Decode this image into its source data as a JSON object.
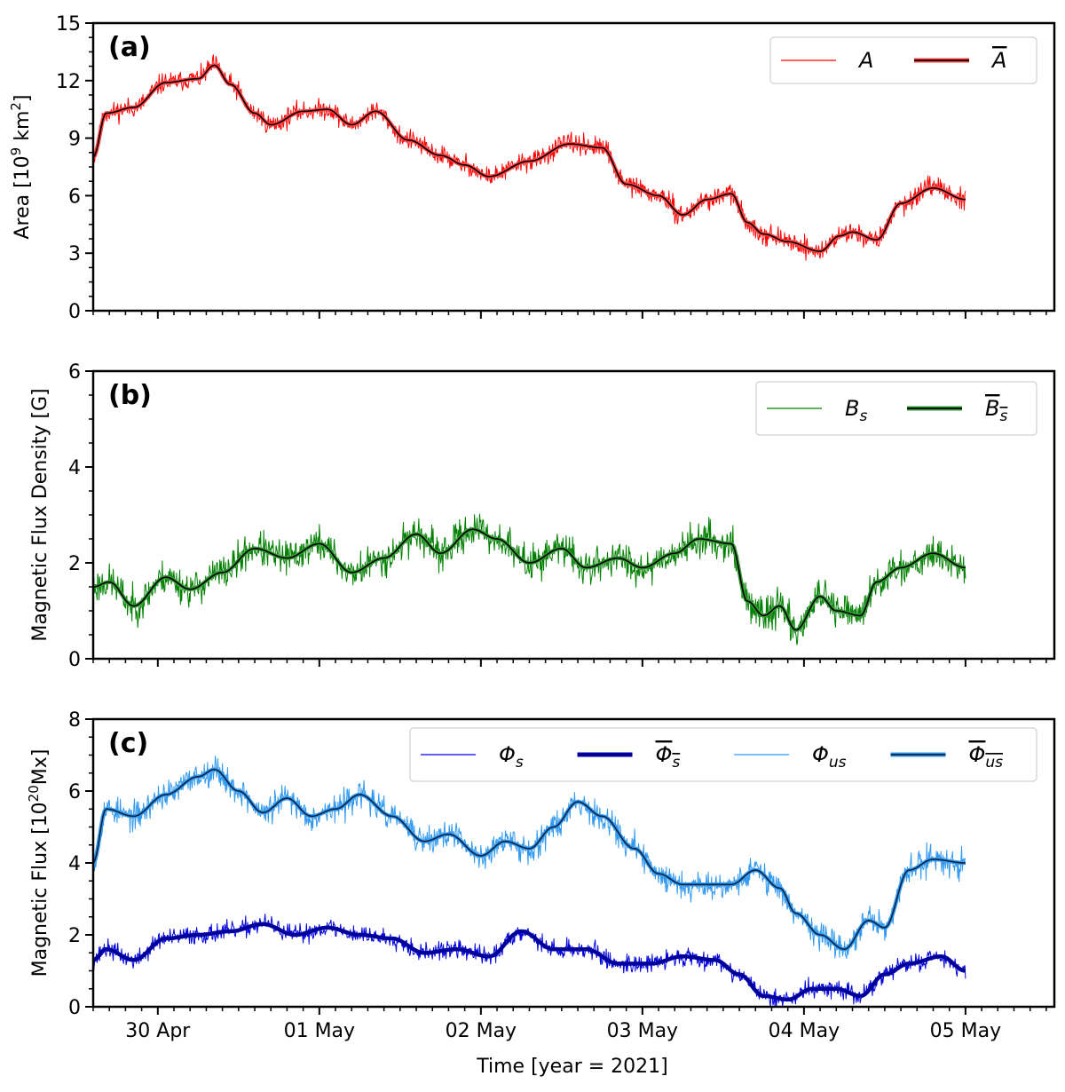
{
  "figure": {
    "xlabel": "Time [year = 2021]",
    "x_ticks": [
      "30 Apr",
      "01 May",
      "02 May",
      "03 May",
      "04 May",
      "05 May"
    ],
    "x_tick_values": [
      0.4,
      1.4,
      2.4,
      3.4,
      4.4,
      5.4
    ],
    "xlim": [
      0,
      5.95
    ]
  },
  "chart_data": [
    {
      "type": "line",
      "panel": "(a)",
      "ylabel": "Area [10",
      "ylabel_sup": "9",
      "ylabel_unit": " km",
      "ylabel_sup2": "2",
      "ylabel_end": "]",
      "ylim": [
        0,
        15
      ],
      "yticks": [
        0,
        3,
        6,
        9,
        12,
        15
      ],
      "series": [
        {
          "name": "A",
          "color": "#ff0000",
          "noisy": true,
          "noise": 0.4,
          "seed": 11,
          "x": [
            0.0,
            0.08,
            0.25,
            0.45,
            0.65,
            0.75,
            0.85,
            1.0,
            1.1,
            1.3,
            1.45,
            1.6,
            1.75,
            1.95,
            2.15,
            2.3,
            2.45,
            2.7,
            2.95,
            3.15,
            3.3,
            3.5,
            3.65,
            3.8,
            3.95,
            4.05,
            4.15,
            4.3,
            4.5,
            4.62,
            4.7,
            4.85,
            5.0,
            5.2,
            5.4
          ],
          "values": [
            8.0,
            10.3,
            10.6,
            11.9,
            12.1,
            12.8,
            11.8,
            10.3,
            9.7,
            10.4,
            10.5,
            9.7,
            10.4,
            8.9,
            8.1,
            7.6,
            7.0,
            7.8,
            8.7,
            8.5,
            6.6,
            6.0,
            5.0,
            5.8,
            6.1,
            4.6,
            4.0,
            3.6,
            3.1,
            3.9,
            4.1,
            3.7,
            5.6,
            6.4,
            5.8
          ]
        },
        {
          "name": "A",
          "overline": true,
          "color": "#000000",
          "halo": "#ff4040",
          "noisy": false,
          "x": [
            0.0,
            0.08,
            0.25,
            0.45,
            0.65,
            0.75,
            0.85,
            1.0,
            1.1,
            1.3,
            1.45,
            1.6,
            1.75,
            1.95,
            2.15,
            2.3,
            2.45,
            2.7,
            2.95,
            3.15,
            3.3,
            3.5,
            3.65,
            3.8,
            3.95,
            4.05,
            4.15,
            4.3,
            4.5,
            4.62,
            4.7,
            4.85,
            5.0,
            5.2,
            5.4
          ],
          "values": [
            8.0,
            10.3,
            10.6,
            11.9,
            12.1,
            12.8,
            11.8,
            10.3,
            9.7,
            10.4,
            10.5,
            9.7,
            10.4,
            8.9,
            8.1,
            7.6,
            7.0,
            7.8,
            8.7,
            8.5,
            6.6,
            6.0,
            5.0,
            5.8,
            6.1,
            4.6,
            4.0,
            3.6,
            3.1,
            3.9,
            4.1,
            3.7,
            5.6,
            6.4,
            5.8
          ]
        }
      ]
    },
    {
      "type": "line",
      "panel": "(b)",
      "ylabel": "Magnetic Flux Density [G]",
      "ylim": [
        0,
        6
      ],
      "yticks": [
        0,
        2,
        4,
        6
      ],
      "series": [
        {
          "name": "B",
          "subscript": "s",
          "color": "#008000",
          "noisy": true,
          "noise": 0.28,
          "seed": 23,
          "x": [
            0.0,
            0.1,
            0.25,
            0.45,
            0.6,
            0.8,
            1.0,
            1.2,
            1.4,
            1.6,
            1.8,
            2.0,
            2.15,
            2.35,
            2.5,
            2.7,
            2.9,
            3.05,
            3.25,
            3.4,
            3.6,
            3.75,
            3.95,
            4.05,
            4.15,
            4.25,
            4.35,
            4.5,
            4.6,
            4.75,
            4.85,
            5.0,
            5.2,
            5.4
          ],
          "values": [
            1.5,
            1.6,
            1.1,
            1.7,
            1.45,
            1.8,
            2.3,
            2.1,
            2.4,
            1.8,
            2.1,
            2.6,
            2.2,
            2.7,
            2.5,
            2.0,
            2.3,
            1.9,
            2.1,
            1.9,
            2.2,
            2.5,
            2.4,
            1.2,
            0.9,
            1.1,
            0.6,
            1.3,
            1.0,
            0.9,
            1.6,
            1.9,
            2.2,
            1.9
          ]
        },
        {
          "name": "B",
          "subscript": "s",
          "overline": true,
          "color": "#000000",
          "halo": "#339933",
          "noisy": false,
          "x": [
            0.0,
            0.1,
            0.25,
            0.45,
            0.6,
            0.8,
            1.0,
            1.2,
            1.4,
            1.6,
            1.8,
            2.0,
            2.15,
            2.35,
            2.5,
            2.7,
            2.9,
            3.05,
            3.25,
            3.4,
            3.6,
            3.75,
            3.95,
            4.05,
            4.15,
            4.25,
            4.35,
            4.5,
            4.6,
            4.75,
            4.85,
            5.0,
            5.2,
            5.4
          ],
          "values": [
            1.5,
            1.6,
            1.1,
            1.7,
            1.45,
            1.8,
            2.3,
            2.1,
            2.4,
            1.8,
            2.1,
            2.6,
            2.2,
            2.7,
            2.5,
            2.0,
            2.3,
            1.9,
            2.1,
            1.9,
            2.2,
            2.5,
            2.4,
            1.2,
            0.9,
            1.1,
            0.6,
            1.3,
            1.0,
            0.9,
            1.6,
            1.9,
            2.2,
            1.9
          ]
        }
      ]
    },
    {
      "type": "line",
      "panel": "(c)",
      "ylabel": "Magnetic Flux [10",
      "ylabel_sup": "20",
      "ylabel_unit": "Mx",
      "ylabel_end": "]",
      "ylim": [
        0,
        8
      ],
      "yticks": [
        0,
        2,
        4,
        6,
        8
      ],
      "series": [
        {
          "name": "Φ",
          "subscript": "s",
          "color": "#0000dd",
          "noisy": true,
          "noise": 0.2,
          "seed": 37,
          "x": [
            0.0,
            0.08,
            0.25,
            0.45,
            0.65,
            0.85,
            1.05,
            1.25,
            1.45,
            1.65,
            1.85,
            2.05,
            2.25,
            2.45,
            2.65,
            2.85,
            3.05,
            3.25,
            3.45,
            3.65,
            3.85,
            4.0,
            4.15,
            4.3,
            4.45,
            4.6,
            4.75,
            4.9,
            5.05,
            5.25,
            5.4
          ],
          "values": [
            1.3,
            1.6,
            1.3,
            1.9,
            2.0,
            2.1,
            2.3,
            2.0,
            2.2,
            2.0,
            1.9,
            1.5,
            1.6,
            1.4,
            2.1,
            1.6,
            1.6,
            1.2,
            1.2,
            1.4,
            1.3,
            0.9,
            0.3,
            0.2,
            0.5,
            0.5,
            0.3,
            0.9,
            1.2,
            1.4,
            1.0
          ]
        },
        {
          "name": "Φ",
          "subscript": "s",
          "overline": true,
          "color": "#00008b",
          "halo": "#0000a8",
          "noisy": false,
          "x": [
            0.0,
            0.08,
            0.25,
            0.45,
            0.65,
            0.85,
            1.05,
            1.25,
            1.45,
            1.65,
            1.85,
            2.05,
            2.25,
            2.45,
            2.65,
            2.85,
            3.05,
            3.25,
            3.45,
            3.65,
            3.85,
            4.0,
            4.15,
            4.3,
            4.45,
            4.6,
            4.75,
            4.9,
            5.05,
            5.25,
            5.4
          ],
          "values": [
            1.3,
            1.6,
            1.3,
            1.9,
            2.0,
            2.1,
            2.3,
            2.0,
            2.2,
            2.0,
            1.9,
            1.5,
            1.6,
            1.4,
            2.1,
            1.6,
            1.6,
            1.2,
            1.2,
            1.4,
            1.3,
            0.9,
            0.3,
            0.2,
            0.5,
            0.5,
            0.3,
            0.9,
            1.2,
            1.4,
            1.0
          ]
        },
        {
          "name": "Φ",
          "subscript": "us",
          "color": "#3399ee",
          "noisy": true,
          "noise": 0.3,
          "seed": 53,
          "x": [
            0.0,
            0.08,
            0.25,
            0.45,
            0.65,
            0.75,
            0.9,
            1.05,
            1.2,
            1.35,
            1.5,
            1.65,
            1.85,
            2.05,
            2.2,
            2.4,
            2.55,
            2.7,
            2.85,
            3.0,
            3.15,
            3.35,
            3.5,
            3.65,
            3.8,
            3.95,
            4.1,
            4.25,
            4.35,
            4.5,
            4.65,
            4.8,
            4.9,
            5.05,
            5.2,
            5.4
          ],
          "values": [
            4.0,
            5.5,
            5.3,
            5.9,
            6.4,
            6.6,
            6.0,
            5.4,
            5.8,
            5.3,
            5.5,
            5.9,
            5.3,
            4.6,
            4.8,
            4.2,
            4.6,
            4.4,
            5.0,
            5.7,
            5.3,
            4.4,
            3.7,
            3.4,
            3.4,
            3.4,
            3.8,
            3.3,
            2.6,
            2.0,
            1.6,
            2.4,
            2.2,
            3.8,
            4.1,
            4.0
          ]
        },
        {
          "name": "Φ",
          "subscript": "us",
          "overline": true,
          "color": "#0b2145",
          "halo": "#3399ee",
          "noisy": false,
          "x": [
            0.0,
            0.08,
            0.25,
            0.45,
            0.65,
            0.75,
            0.9,
            1.05,
            1.2,
            1.35,
            1.5,
            1.65,
            1.85,
            2.05,
            2.2,
            2.4,
            2.55,
            2.7,
            2.85,
            3.0,
            3.15,
            3.35,
            3.5,
            3.65,
            3.8,
            3.95,
            4.1,
            4.25,
            4.35,
            4.5,
            4.65,
            4.8,
            4.9,
            5.05,
            5.2,
            5.4
          ],
          "values": [
            4.0,
            5.5,
            5.3,
            5.9,
            6.4,
            6.6,
            6.0,
            5.4,
            5.8,
            5.3,
            5.5,
            5.9,
            5.3,
            4.6,
            4.8,
            4.2,
            4.6,
            4.4,
            5.0,
            5.7,
            5.3,
            4.4,
            3.7,
            3.4,
            3.4,
            3.4,
            3.8,
            3.3,
            2.6,
            2.0,
            1.6,
            2.4,
            2.2,
            3.8,
            4.1,
            4.0
          ]
        }
      ]
    }
  ]
}
